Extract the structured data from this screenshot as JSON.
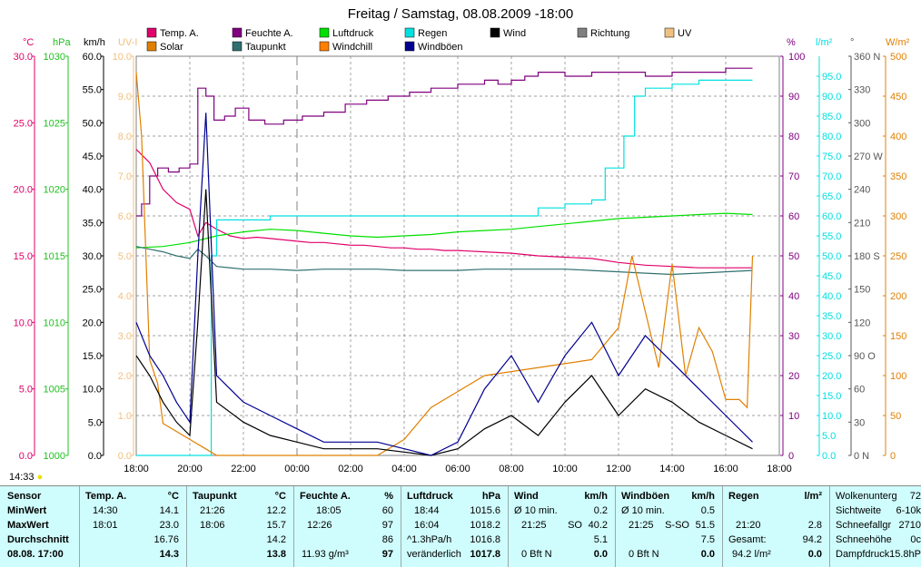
{
  "title": "Freitag / Samstag, 08.08.2009  -18:00",
  "colors": {
    "temp": "#e0006a",
    "feuchte": "#800080",
    "luftdruck": "#00e000",
    "regen": "#00e0e0",
    "wind": "#000000",
    "richtung": "#808080",
    "uv": "#f0c080",
    "solar": "#e08000",
    "taupunkt": "#307070",
    "windchill": "#ff8000",
    "windboeen": "#000090",
    "panel_bg": "#cffcfc",
    "grid": "#808080"
  },
  "unit_labels": {
    "c": "°C",
    "hpa": "hPa",
    "kmh": "km/h",
    "uv": "UV-I",
    "pct": "%",
    "lm2": "l/m²",
    "deg": "°",
    "wm2": "W/m²"
  },
  "legend": [
    {
      "label": "Temp. A.",
      "color": "#e0006a"
    },
    {
      "label": "Feuchte A.",
      "color": "#800080"
    },
    {
      "label": "Luftdruck",
      "color": "#00e000"
    },
    {
      "label": "Regen",
      "color": "#00e0e0"
    },
    {
      "label": "Wind",
      "color": "#000000"
    },
    {
      "label": "Richtung",
      "color": "#808080"
    },
    {
      "label": "UV",
      "color": "#f0c080"
    },
    {
      "label": "Solar",
      "color": "#e08000"
    },
    {
      "label": "Taupunkt",
      "color": "#307070"
    },
    {
      "label": "Windchill",
      "color": "#ff8000"
    },
    {
      "label": "Windböen",
      "color": "#000090"
    }
  ],
  "chart_data": {
    "type": "line",
    "title": "Freitag / Samstag, 08.08.2009  -18:00",
    "x_ticks": [
      "18:00",
      "20:00",
      "22:00",
      "00:00",
      "02:00",
      "04:00",
      "06:00",
      "08:00",
      "10:00",
      "12:00",
      "14:00",
      "16:00",
      "18:00"
    ],
    "x_range_hours": [
      0,
      24
    ],
    "axes": {
      "temp": {
        "unit": "°C",
        "ticks": [
          "30.0",
          "25.0",
          "20.0",
          "15.0",
          "10.0",
          "5.0",
          "0.0"
        ],
        "ylim": [
          0,
          30
        ]
      },
      "pressure": {
        "unit": "hPa",
        "ticks": [
          "1030",
          "1025",
          "1020",
          "1015",
          "1010",
          "1005",
          "1000"
        ],
        "ylim": [
          1000,
          1030
        ]
      },
      "wind": {
        "unit": "km/h",
        "ticks": [
          "60.0",
          "55.0",
          "50.0",
          "45.0",
          "40.0",
          "35.0",
          "30.0",
          "25.0",
          "20.0",
          "15.0",
          "10.0",
          "5.0",
          "0.0"
        ],
        "ylim": [
          0,
          60
        ]
      },
      "uv": {
        "unit": "UV-I",
        "ticks": [
          "10.0",
          "9.0",
          "8.0",
          "7.0",
          "6.0",
          "5.0",
          "4.0",
          "3.0",
          "2.0",
          "1.0",
          "0.0"
        ],
        "ylim": [
          0,
          10
        ]
      },
      "humidity": {
        "unit": "%",
        "ticks": [
          "100",
          "90",
          "80",
          "70",
          "60",
          "50",
          "40",
          "30",
          "20",
          "10",
          "0"
        ],
        "ylim": [
          0,
          100
        ]
      },
      "rain": {
        "unit": "l/m²",
        "ticks": [
          "95.0",
          "90.0",
          "85.0",
          "80.0",
          "75.0",
          "70.0",
          "65.0",
          "60.0",
          "55.0",
          "50.0",
          "45.0",
          "40.0",
          "35.0",
          "30.0",
          "25.0",
          "20.0",
          "15.0",
          "10.0",
          "5.0",
          "0.0"
        ],
        "ylim": [
          0,
          100
        ]
      },
      "direction": {
        "unit": "°",
        "ticks": [
          "360 N",
          "330",
          "300",
          "270 W",
          "240",
          "210",
          "180 S",
          "150",
          "120",
          "90 O",
          "60",
          "30",
          "0   N"
        ],
        "ylim": [
          0,
          360
        ]
      },
      "solar": {
        "unit": "W/m²",
        "ticks": [
          "500",
          "450",
          "400",
          "350",
          "300",
          "250",
          "200",
          "150",
          "100",
          "50",
          "0"
        ],
        "ylim": [
          0,
          500
        ]
      }
    },
    "series": [
      {
        "name": "Feuchte A.",
        "axis": "humidity",
        "x": [
          0,
          0.2,
          0.5,
          0.8,
          1.2,
          1.6,
          2.0,
          2.3,
          2.6,
          2.9,
          3.3,
          3.7,
          4.2,
          4.8,
          5.5,
          6.2,
          7.0,
          7.8,
          8.6,
          9.4,
          10.2,
          11.0,
          12.0,
          13.0,
          13.5,
          14.0,
          14.5,
          15.0,
          16.0,
          17.0,
          18.0,
          19.0,
          20.0,
          21.0,
          22.0,
          23.0
        ],
        "values": [
          60,
          63,
          70,
          72,
          71,
          72,
          73,
          92,
          90,
          84,
          85,
          87,
          84,
          83,
          84,
          85,
          86,
          88,
          89,
          90,
          91,
          92,
          93,
          94,
          93,
          94,
          95,
          96,
          95,
          96,
          96,
          95,
          96,
          96,
          97,
          97
        ]
      },
      {
        "name": "Temp. A.",
        "axis": "temp",
        "x": [
          0,
          0.5,
          1.0,
          1.5,
          2.0,
          2.3,
          2.6,
          3.0,
          3.5,
          4.0,
          4.5,
          5.0,
          5.5,
          6.0,
          6.5,
          7.0,
          7.5,
          8.0,
          8.5,
          9.0,
          9.5,
          10.0,
          10.5,
          11.0,
          11.5,
          12.0,
          13.0,
          14.0,
          15.0,
          16.0,
          17.0,
          18.0,
          19.0,
          20.0,
          21.0,
          22.0,
          23.0
        ],
        "values": [
          23.0,
          22.0,
          20.0,
          19.0,
          18.5,
          16.5,
          17.5,
          17.0,
          16.5,
          16.3,
          16.4,
          16.3,
          16.2,
          16.1,
          16.0,
          16.0,
          15.9,
          15.8,
          15.8,
          15.7,
          15.6,
          15.6,
          15.5,
          15.5,
          15.4,
          15.4,
          15.3,
          15.2,
          15.0,
          14.9,
          14.8,
          14.5,
          14.3,
          14.2,
          14.1,
          14.1,
          14.1
        ]
      },
      {
        "name": "Luftdruck",
        "axis": "pressure",
        "x": [
          0,
          1.0,
          2.0,
          3.0,
          4.0,
          5.0,
          6.0,
          7.0,
          8.0,
          9.0,
          10.0,
          11.0,
          12.0,
          13.0,
          14.0,
          15.0,
          16.0,
          17.0,
          18.0,
          19.0,
          20.0,
          21.0,
          22.0,
          23.0
        ],
        "values": [
          1015.6,
          1015.7,
          1016.0,
          1016.5,
          1016.8,
          1017.0,
          1016.9,
          1016.7,
          1016.5,
          1016.4,
          1016.5,
          1016.6,
          1016.8,
          1016.9,
          1017.0,
          1017.2,
          1017.4,
          1017.6,
          1017.8,
          1017.9,
          1018.0,
          1018.1,
          1018.2,
          1018.1
        ]
      },
      {
        "name": "Taupunkt",
        "axis": "temp",
        "x": [
          0,
          0.5,
          1.0,
          1.5,
          2.0,
          2.3,
          2.6,
          3.0,
          4.0,
          5.0,
          6.0,
          7.0,
          8.0,
          9.0,
          10.0,
          11.0,
          12.0,
          13.0,
          14.0,
          15.0,
          16.0,
          17.0,
          18.0,
          19.0,
          20.0,
          21.0,
          22.0,
          23.0
        ],
        "values": [
          15.7,
          15.5,
          15.3,
          15.0,
          14.8,
          15.5,
          15.0,
          14.2,
          14.0,
          14.0,
          13.9,
          14.0,
          14.0,
          14.0,
          13.9,
          13.9,
          13.9,
          14.0,
          14.0,
          14.0,
          14.0,
          13.9,
          13.8,
          13.7,
          13.6,
          13.7,
          13.8,
          13.9
        ]
      },
      {
        "name": "Regen",
        "axis": "rain",
        "x": [
          0,
          2.5,
          2.8,
          3.0,
          5.0,
          10.0,
          14.5,
          15.0,
          16.0,
          16.5,
          17.0,
          17.5,
          17.9,
          18.2,
          18.6,
          19.0,
          20.0,
          21.0,
          22.0,
          23.0
        ],
        "values": [
          0,
          0,
          50,
          59,
          60,
          60,
          60,
          62,
          63,
          63,
          64,
          72,
          72,
          80,
          90,
          92,
          93,
          94,
          94,
          94
        ]
      },
      {
        "name": "Solar",
        "axis": "solar",
        "x": [
          0,
          0.2,
          0.5,
          0.8,
          1.0,
          1.5,
          2.0,
          2.5,
          3.0,
          6.0,
          9.0,
          10.0,
          11.0,
          12.0,
          13.0,
          17.0,
          18.0,
          18.5,
          19.0,
          19.5,
          20.0,
          20.5,
          21.0,
          21.5,
          22.0,
          22.5,
          22.8,
          23.0
        ],
        "values": [
          480,
          400,
          120,
          90,
          40,
          30,
          20,
          10,
          0,
          0,
          0,
          20,
          60,
          80,
          100,
          120,
          160,
          250,
          180,
          110,
          240,
          100,
          160,
          130,
          70,
          70,
          60,
          250
        ]
      },
      {
        "name": "Wind",
        "axis": "wind",
        "x": [
          0,
          0.5,
          1.0,
          1.5,
          2.0,
          2.3,
          2.6,
          3.0,
          4.0,
          5.0,
          6.0,
          7.0,
          8.0,
          9.0,
          11.0,
          12.0,
          13.0,
          14.0,
          15.0,
          16.0,
          17.0,
          18.0,
          19.0,
          20.0,
          21.0,
          22.0,
          23.0
        ],
        "values": [
          15,
          12,
          8,
          5,
          3,
          20,
          40,
          8,
          5,
          3,
          2,
          1,
          1,
          1,
          0,
          1,
          4,
          6,
          3,
          8,
          12,
          6,
          10,
          8,
          5,
          3,
          1
        ]
      },
      {
        "name": "Windböen",
        "axis": "wind",
        "x": [
          0,
          0.5,
          1.0,
          1.5,
          2.0,
          2.3,
          2.6,
          3.0,
          4.0,
          5.0,
          6.0,
          7.0,
          8.0,
          9.0,
          11.0,
          12.0,
          13.0,
          14.0,
          15.0,
          16.0,
          17.0,
          18.0,
          19.0,
          20.0,
          21.0,
          22.0,
          23.0
        ],
        "values": [
          20,
          15,
          12,
          8,
          5,
          30,
          51.5,
          12,
          8,
          6,
          4,
          2,
          2,
          2,
          0,
          2,
          10,
          15,
          8,
          15,
          20,
          12,
          18,
          14,
          10,
          6,
          2
        ]
      }
    ]
  },
  "time_marker": "14:33",
  "panel": {
    "sensor": {
      "header": "Sensor",
      "min": "MinWert",
      "max": "MaxWert",
      "avg": "Durchschnitt",
      "current": "08.08. 17:00"
    },
    "temp": {
      "header": "Temp. A.",
      "unit": "°C",
      "min_time": "14:30",
      "min_val": "14.1",
      "max_time": "18:01",
      "max_val": "23.0",
      "avg": "16.76",
      "current": "14.3"
    },
    "taupunkt": {
      "header": "Taupunkt",
      "unit": "°C",
      "min_time": "21:26",
      "min_val": "12.2",
      "max_time": "18:06",
      "max_val": "15.7",
      "avg": "14.2",
      "current": "13.8"
    },
    "feuchte": {
      "header": "Feuchte A.",
      "unit": "%",
      "min_time": "18:05",
      "min_val": "60",
      "max_time": "12:26",
      "max_val": "97",
      "avg": "86",
      "current_extra": "11.93 g/m³",
      "current": "97"
    },
    "luftdruck": {
      "header": "Luftdruck",
      "unit": "hPa",
      "min_time": "18:44",
      "min_val": "1015.6",
      "max_time": "16:04",
      "max_val": "1018.2",
      "avg_label": "^1.3hPa/h",
      "avg": "1016.8",
      "trend": "veränderlich",
      "current": "1017.8"
    },
    "wind": {
      "header": "Wind",
      "unit": "km/h",
      "min_label": "Ø 10 min.",
      "min_val": "0.2",
      "max_time": "21:25",
      "max_dir": "SO",
      "max_val": "40.2",
      "avg": "5.1",
      "current_label": "0 Bft N",
      "current": "0.0"
    },
    "windboeen": {
      "header": "Windböen",
      "unit": "km/h",
      "min_label": "Ø 10 min.",
      "min_val": "0.5",
      "max_time": "21:25",
      "max_dir": "S-SO",
      "max_val": "51.5",
      "avg": "7.5",
      "current_label": "0 Bft N",
      "current": "0.0"
    },
    "regen": {
      "header": "Regen",
      "unit": "l/m²",
      "max_time": "21:20",
      "max_val": "2.8",
      "total_label": "Gesamt:",
      "total": "94.2",
      "current_label": "94.2 l/m²",
      "current": "0.0"
    },
    "extra": {
      "r1_label": "Wolkenunterg",
      "r1_val": "72",
      "r2_label": "Sichtweite",
      "r2_val": "6-10k",
      "r3_label": "Schneefallgr",
      "r3_val": "2710",
      "r4_label": "Schneehöhe",
      "r4_val": "0c",
      "r5_label": "Dampfdruck",
      "r5_val": "15.8hP"
    }
  }
}
